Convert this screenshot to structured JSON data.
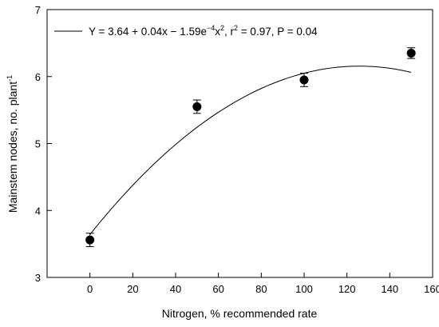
{
  "chart_data": {
    "type": "scatter",
    "xlabel": "Nitrogen, % recommended rate",
    "ylabel": "Mainstem nodes, no. plant",
    "ylabel_sup": "-1",
    "xlim": [
      -20,
      160
    ],
    "ylim": [
      3,
      7
    ],
    "xticks": [
      "0",
      "20",
      "40",
      "60",
      "80",
      "100",
      "120",
      "140",
      "160"
    ],
    "yticks": [
      "3",
      "4",
      "5",
      "6",
      "7"
    ],
    "grid": false,
    "legend_position": "top-left",
    "points": [
      {
        "x": 0,
        "y": 3.56,
        "err": 0.1
      },
      {
        "x": 50,
        "y": 5.55,
        "err": 0.1
      },
      {
        "x": 100,
        "y": 5.95,
        "err": 0.1
      },
      {
        "x": 150,
        "y": 6.35,
        "err": 0.08
      }
    ],
    "fit": {
      "type": "quadratic",
      "intercept": 3.64,
      "linear": 0.04,
      "quadratic": -0.000159,
      "x_range": [
        0,
        150
      ],
      "legend": {
        "eq_part1": "Y = 3.64 + 0.04x − 1.59e",
        "eq_sup1": "−4",
        "eq_part2": "x",
        "eq_sup2": "2",
        "eq_part3": ", r",
        "eq_sup3": "2",
        "eq_part4": " = 0.97, P = 0.04"
      }
    },
    "colors": {
      "marker": "#000000",
      "line": "#000000",
      "axis": "#000000"
    }
  }
}
